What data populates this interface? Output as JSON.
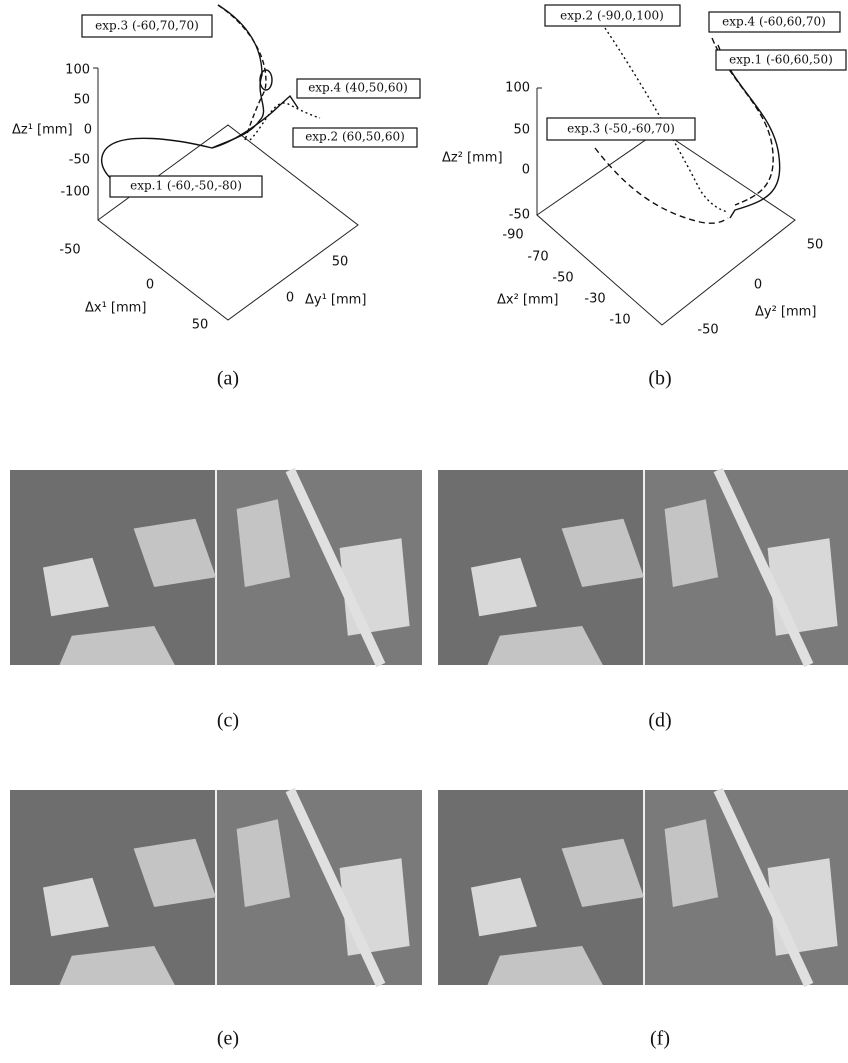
{
  "panels": [
    {
      "label": "(a)",
      "axis_labels": {
        "z": "Δz¹ [mm]",
        "x": "Δx¹ [mm]",
        "y": "Δy¹ [mm]"
      },
      "z_ticks": [
        "100",
        "50",
        "0",
        "-50",
        "-100"
      ],
      "x_ticks": [
        "-50",
        "0",
        "50"
      ],
      "y_ticks": [
        "50",
        "0"
      ],
      "annotations": [
        "exp.3 (-60,70,70)",
        "exp.4 (40,50,60)",
        "exp.2 (60,50,60)",
        "exp.1 (-60,-50,-80)"
      ]
    },
    {
      "label": "(b)",
      "axis_labels": {
        "z": "Δz² [mm]",
        "x": "Δx² [mm]",
        "y": "Δy² [mm]"
      },
      "z_ticks": [
        "100",
        "50",
        "0",
        "-50"
      ],
      "x_ticks": [
        "-90",
        "-70",
        "-50",
        "-30",
        "-10"
      ],
      "y_ticks": [
        "50",
        "0",
        "-50"
      ],
      "annotations": [
        "exp.2 (-90,0,100)",
        "exp.4 (-60,60,70)",
        "exp.1 (-60,60,50)",
        "exp.3 (-50,-60,70)"
      ]
    }
  ],
  "photos": [
    "(c)",
    "(d)",
    "(e)",
    "(f)"
  ]
}
